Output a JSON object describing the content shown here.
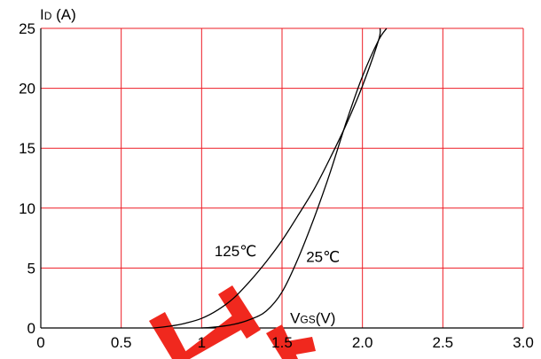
{
  "chart_data": {
    "type": "line",
    "title": "",
    "ylabel": {
      "main": "I",
      "sub": "D",
      "unit": " (A)"
    },
    "xlabel": {
      "main": "V",
      "sub": "GS",
      "unit": "(V)"
    },
    "xlim": [
      0,
      3.0
    ],
    "ylim": [
      0,
      25
    ],
    "xticks": [
      {
        "value": 0,
        "label": "0"
      },
      {
        "value": 0.5,
        "label": "0.5"
      },
      {
        "value": 1,
        "label": "1"
      },
      {
        "value": 1.5,
        "label": "1.5"
      },
      {
        "value": 2.0,
        "label": "2.0"
      },
      {
        "value": 2.5,
        "label": "2.5"
      },
      {
        "value": 3.0,
        "label": "3.0"
      }
    ],
    "yticks": [
      {
        "value": 0,
        "label": "0"
      },
      {
        "value": 5,
        "label": "5"
      },
      {
        "value": 10,
        "label": "10"
      },
      {
        "value": 15,
        "label": "15"
      },
      {
        "value": 20,
        "label": "20"
      },
      {
        "value": 25,
        "label": "25"
      }
    ],
    "grid": true,
    "colors": {
      "grid": "#ee1c25",
      "axis": "#000000",
      "curve": "#000000",
      "watermark": "#f0281e"
    },
    "series": [
      {
        "name": "125℃",
        "x": [
          0.7,
          0.8,
          0.9,
          1.0,
          1.1,
          1.2,
          1.3,
          1.4,
          1.5,
          1.6,
          1.7,
          1.8,
          1.9,
          2.0,
          2.1,
          2.11
        ],
        "y": [
          0,
          0.15,
          0.4,
          0.8,
          1.5,
          2.5,
          3.9,
          5.5,
          7.3,
          9.4,
          11.6,
          14.2,
          17.0,
          20.2,
          24.0,
          25
        ]
      },
      {
        "name": "25℃",
        "x": [
          1.0,
          1.1,
          1.2,
          1.3,
          1.4,
          1.5,
          1.6,
          1.7,
          1.8,
          1.9,
          2.0,
          2.1,
          2.15
        ],
        "y": [
          0,
          0.1,
          0.3,
          0.7,
          1.4,
          3.0,
          5.8,
          9.2,
          13.0,
          17.2,
          21.0,
          24.0,
          25
        ]
      }
    ],
    "annotations": [
      {
        "text": "125℃",
        "x": 1.08,
        "y": 6.0
      },
      {
        "text": "25℃",
        "x": 1.65,
        "y": 5.5
      }
    ]
  }
}
